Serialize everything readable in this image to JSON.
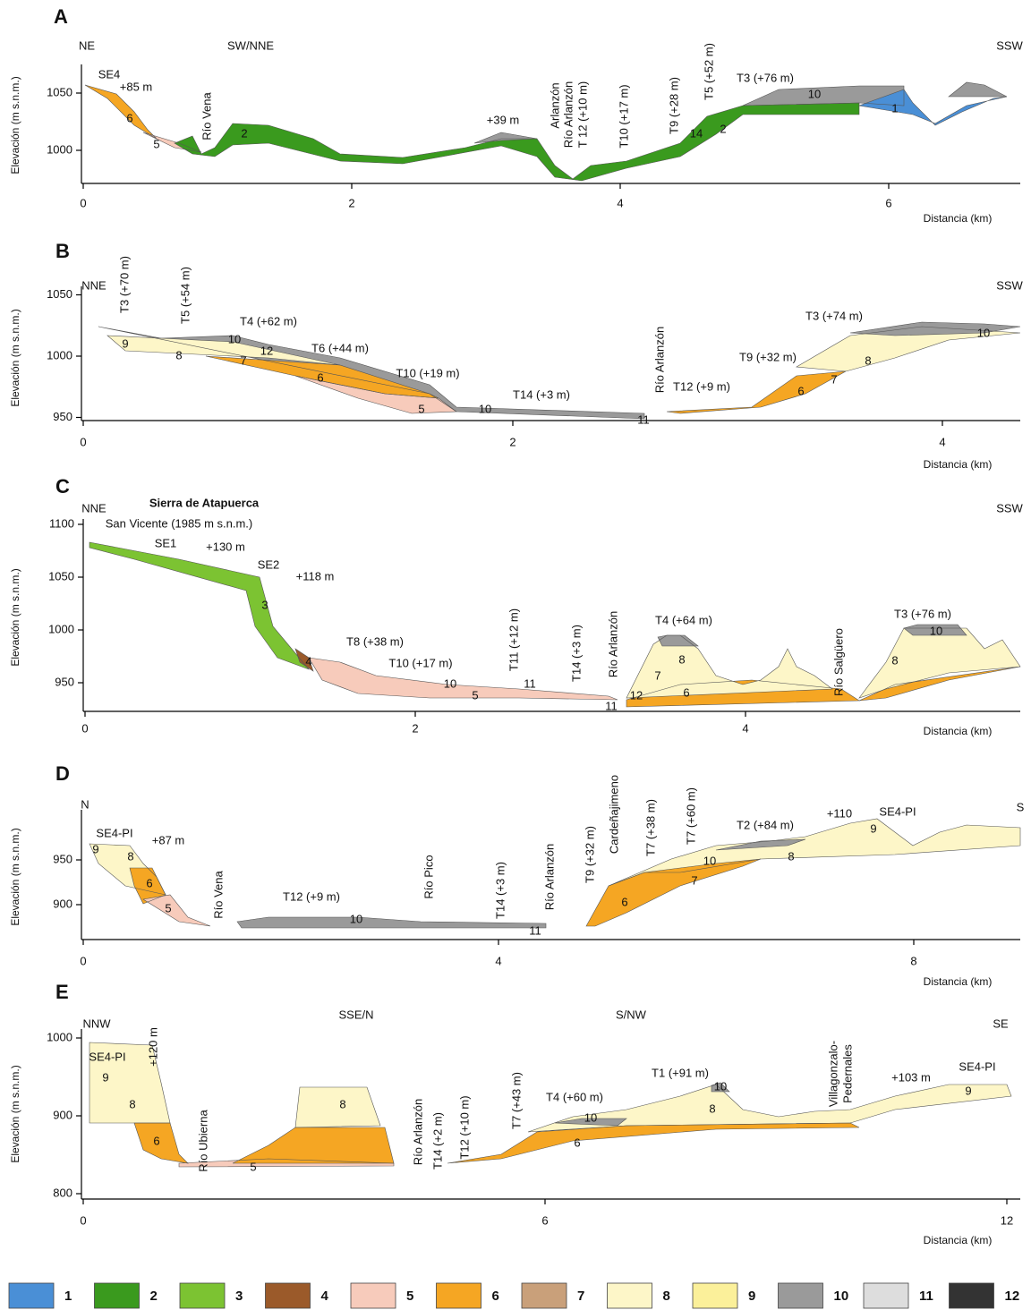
{
  "panels": [
    {
      "letter": "A",
      "y_axis_label": "Elevación (m s.n.m.)",
      "x_axis_label": "Distancia (km)",
      "yticks": [
        1000,
        1050
      ],
      "xticks": [
        0,
        2,
        4,
        6
      ],
      "labels": [
        "NE",
        "SW/NNE",
        "SSW",
        "SE4",
        "+85 m",
        "Río Vena",
        "6",
        "5",
        "2",
        "+39 m",
        "Arlanzón",
        "Río Arlanzón",
        "T 12 (+10 m)",
        "T10 (+17 m)",
        "T9 (+28 m)",
        "T5 (+52 m)",
        "T3 (+76 m)",
        "10",
        "14",
        "2",
        "1"
      ]
    },
    {
      "letter": "B",
      "y_axis_label": "Elevación (m s.n.m.)",
      "x_axis_label": "Distancia (km)",
      "yticks": [
        950,
        1000,
        1050
      ],
      "xticks": [
        0,
        2,
        4
      ],
      "labels": [
        "NNE",
        "T3 (+70 m)",
        "T5 (+54 m)",
        "T4 (+62 m)",
        "10",
        "12",
        "9",
        "8",
        "7",
        "T6 (+44 m)",
        "6",
        "T10 (+19 m)",
        "5",
        "10",
        "T14 (+3 m)",
        "11",
        "Río Arlanzón",
        "T12 (+9 m)",
        "T9 (+32 m)",
        "6",
        "7",
        "T3 (+74 m)",
        "8",
        "10",
        "SSW"
      ]
    },
    {
      "letter": "C",
      "y_axis_label": "Elevación (m s.n.m.)",
      "x_axis_label": "Distancia (km)",
      "yticks": [
        950,
        1000,
        1050,
        1100
      ],
      "xticks": [
        0,
        2,
        4
      ],
      "labels": [
        "NNE",
        "Sierra de Atapuerca",
        "San Vicente (1985 m s.n.m.)",
        "SE1",
        "+130 m",
        "SE2",
        "+118 m",
        "3",
        "4",
        "T8 (+38 m)",
        "T10 (+17 m)",
        "10",
        "5",
        "11",
        "T11 (+12 m)",
        "T14 (+3 m)",
        "Río Arlanzón",
        "11",
        "12",
        "T4 (+64 m)",
        "8",
        "7",
        "6",
        "Río Salgüero",
        "T3 (+76 m)",
        "10",
        "8",
        "SSW"
      ]
    },
    {
      "letter": "D",
      "y_axis_label": "Elevación (m s.n.m.)",
      "x_axis_label": "Distancia (km)",
      "yticks": [
        900,
        950
      ],
      "xticks": [
        0,
        4,
        8
      ],
      "labels": [
        "N",
        "SE4-PI",
        "+87 m",
        "9",
        "8",
        "6",
        "5",
        "Río Vena",
        "T12 (+9 m)",
        "10",
        "Río Pico",
        "T14 (+3 m)",
        "Río Arlanzón",
        "11",
        "T9 (+32 m)",
        "Cardeñajimeno",
        "T7 (+38 m)",
        "T7 (+60 m)",
        "10",
        "7",
        "6",
        "T2 (+84 m)",
        "8",
        "+110",
        "SE4-PI",
        "9",
        "S"
      ]
    },
    {
      "letter": "E",
      "y_axis_label": "Elevación (m s.n.m.)",
      "x_axis_label": "Distancia (km)",
      "yticks": [
        800,
        900,
        1000
      ],
      "xticks": [
        0,
        6,
        12
      ],
      "labels": [
        "NNW",
        "SSE/N",
        "S/NW",
        "SE",
        "SE4-PI",
        "+120 m",
        "9",
        "8",
        "6",
        "Río Ubierna",
        "5",
        "8",
        "Río Arlanzón",
        "T14 (+2 m)",
        "T12 (+10 m)",
        "T7 (+43 m)",
        "T4 (+60 m)",
        "10",
        "6",
        "T1 (+91 m)",
        "10",
        "8",
        "Villagonzalo-",
        "Pedernales",
        "+103 m",
        "SE4-PI",
        "9"
      ]
    }
  ],
  "legend": [
    {
      "label": "1",
      "color": "#4a8fd6"
    },
    {
      "label": "2",
      "color": "#3a9a1e"
    },
    {
      "label": "3",
      "color": "#7cc332"
    },
    {
      "label": "4",
      "color": "#9b5a2a"
    },
    {
      "label": "5",
      "color": "#f7cbbb"
    },
    {
      "label": "6",
      "color": "#f5a623"
    },
    {
      "label": "7",
      "color": "#c9a07a"
    },
    {
      "label": "8",
      "color": "#fdf6c8"
    },
    {
      "label": "9",
      "color": "#fbf09a"
    },
    {
      "label": "10",
      "color": "#9a9a9a"
    },
    {
      "label": "11",
      "color": "#dddddd"
    },
    {
      "label": "12",
      "color": "#333333"
    }
  ]
}
